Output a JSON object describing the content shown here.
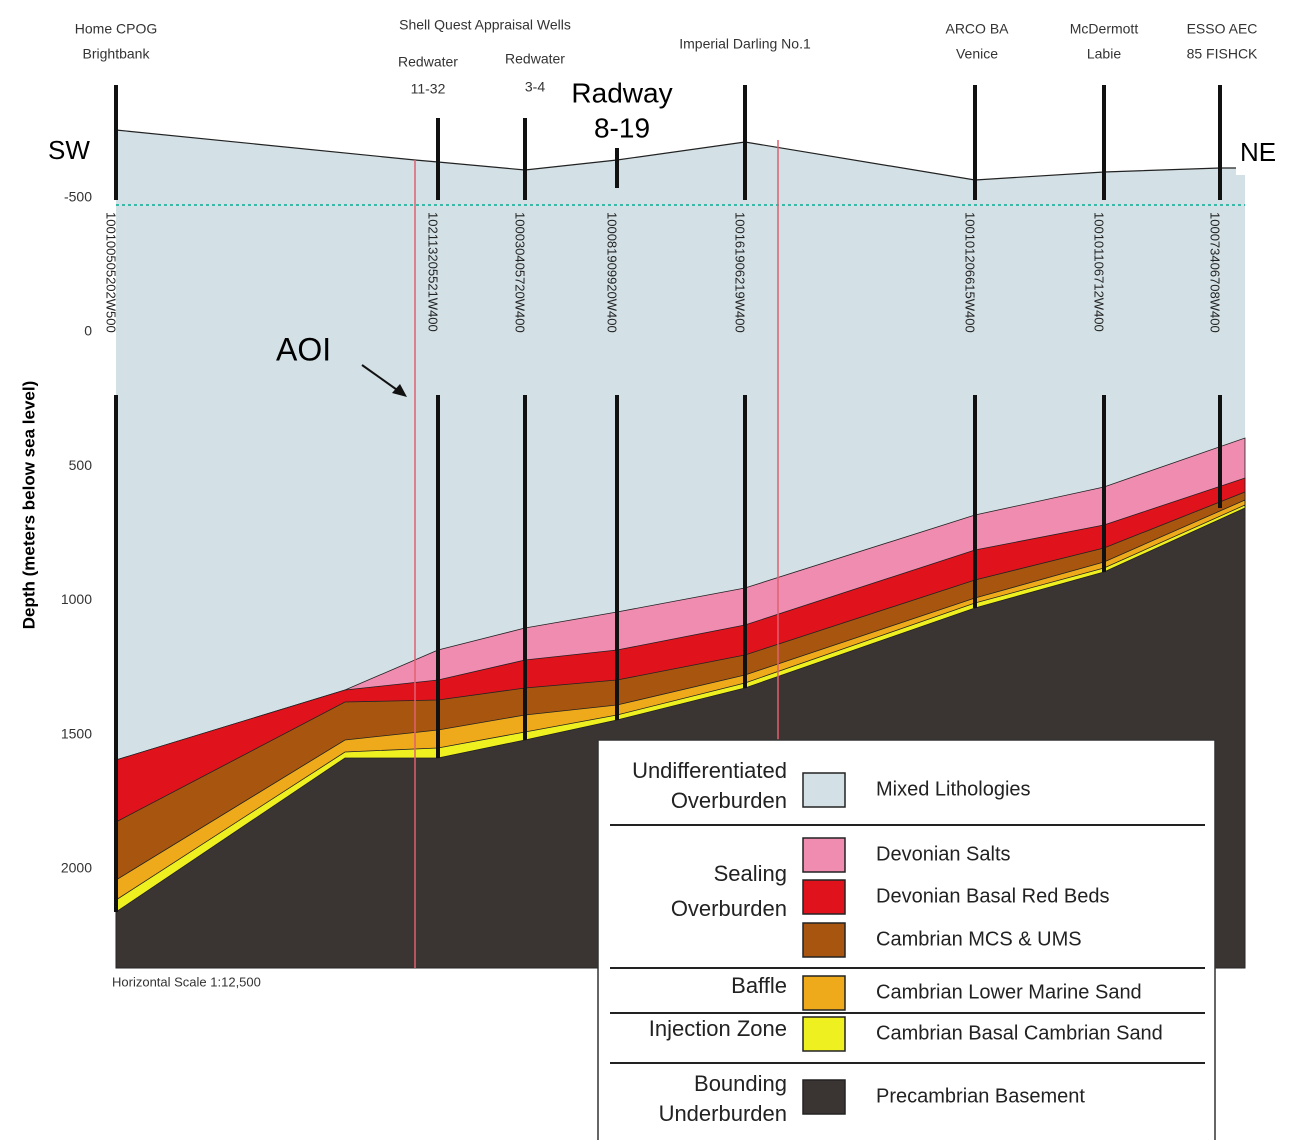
{
  "direction_labels": {
    "left": "SW",
    "right": "NE"
  },
  "group_label": "Shell Quest Appraisal Wells",
  "wells": [
    {
      "name": [
        "Home CPOG",
        "Brightbank"
      ],
      "uwi": "100100505202W500"
    },
    {
      "name": [
        "Redwater",
        "11-32"
      ],
      "uwi": "102113205521W400"
    },
    {
      "name": [
        "Redwater",
        "3-4"
      ],
      "uwi": "100030405720W400"
    },
    {
      "name": [
        "Radway",
        "8-19"
      ],
      "uwi": "100081909920W400"
    },
    {
      "name": [
        "Imperial Darling No.1"
      ],
      "uwi": "100161906219W400"
    },
    {
      "name": [
        "ARCO BA",
        "Venice"
      ],
      "uwi": "100101206615W400"
    },
    {
      "name": [
        "McDermott",
        "Labie"
      ],
      "uwi": "100101106712W400"
    },
    {
      "name": [
        "ESSO AEC",
        "85 FISHCK"
      ],
      "uwi": "100073406708W400"
    }
  ],
  "annotation": "AOI",
  "depth_axis": {
    "label": "Depth (meters below sea level)",
    "ticks": [
      -500,
      0,
      500,
      1000,
      1500,
      2000
    ]
  },
  "scale_note": "Horizontal Scale 1:12,500",
  "legend": [
    {
      "group": [
        "Undifferentiated",
        "Overburden"
      ],
      "items": [
        {
          "label": "Mixed Lithologies",
          "color": "#d3e0e5"
        }
      ]
    },
    {
      "group": [
        "Sealing",
        "Overburden"
      ],
      "items": [
        {
          "label": "Devonian Salts",
          "color": "#f08cb0"
        },
        {
          "label": "Devonian Basal Red Beds",
          "color": "#e0121c"
        },
        {
          "label": "Cambrian MCS & UMS",
          "color": "#a8560f"
        }
      ]
    },
    {
      "group": [
        "Baffle"
      ],
      "items": [
        {
          "label": "Cambrian Lower Marine Sand",
          "color": "#eeaa1a"
        }
      ]
    },
    {
      "group": [
        "Injection Zone"
      ],
      "items": [
        {
          "label": "Cambrian Basal Cambrian Sand",
          "color": "#eef020"
        }
      ]
    },
    {
      "group": [
        "Bounding",
        "Underburden"
      ],
      "items": [
        {
          "label": "Precambrian Basement",
          "color": "#3a3533"
        }
      ]
    }
  ]
}
